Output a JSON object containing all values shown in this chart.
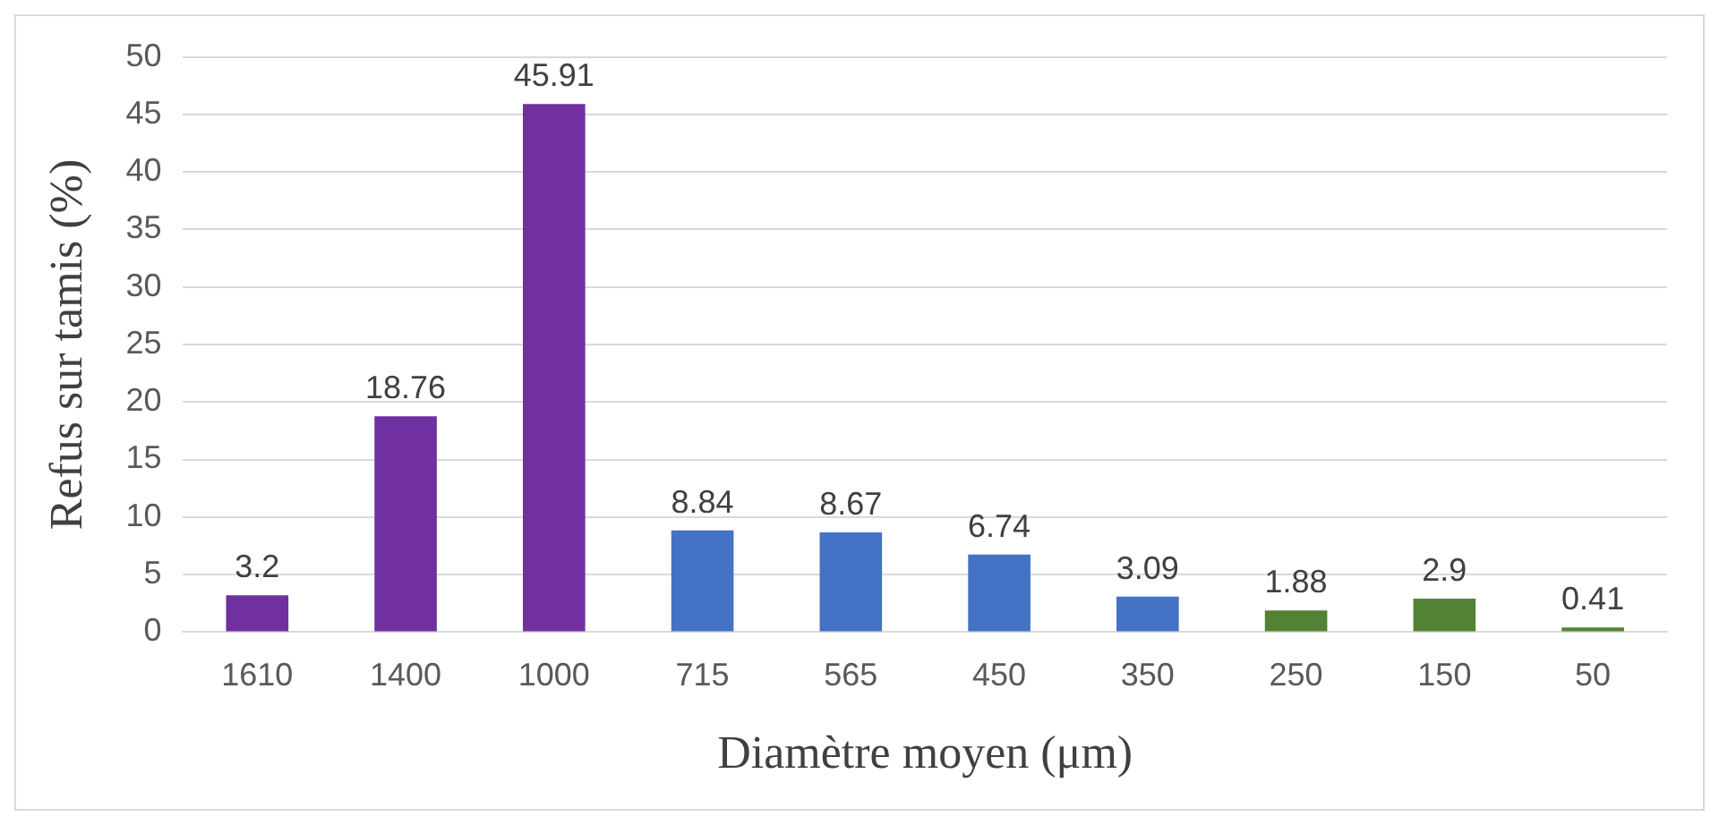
{
  "chart_data": {
    "type": "bar",
    "xlabel": "Diamètre moyen (μm)",
    "ylabel": "Refus sur tamis (%)",
    "categories": [
      "1610",
      "1400",
      "1000",
      "715",
      "565",
      "450",
      "350",
      "250",
      "150",
      "50"
    ],
    "values": [
      3.2,
      18.76,
      45.91,
      8.84,
      8.67,
      6.74,
      3.09,
      1.88,
      2.9,
      0.41
    ],
    "colors": [
      "#7030a0",
      "#7030a0",
      "#7030a0",
      "#4472c4",
      "#4472c4",
      "#4472c4",
      "#4472c4",
      "#548235",
      "#548235",
      "#548235"
    ],
    "ylim": [
      0,
      50
    ],
    "yticks": [
      0,
      5,
      10,
      15,
      20,
      25,
      30,
      35,
      40,
      45,
      50
    ],
    "grid": "y",
    "data_labels": true
  }
}
